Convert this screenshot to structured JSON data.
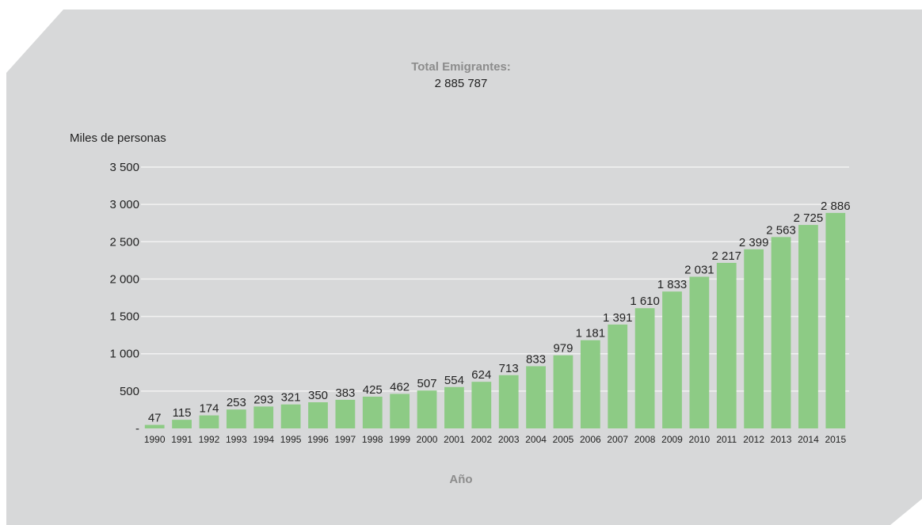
{
  "header": {
    "title": "Total Emigrantes:",
    "total": "2 885 787"
  },
  "colors": {
    "panel": "#d7d8d9",
    "bar": "#8dcb85",
    "grid": "#f2f2f2",
    "text": "#222222",
    "muted": "#8c8c8c"
  },
  "chart_data": {
    "type": "bar",
    "xlabel": "Año",
    "ylabel": "Miles de personas",
    "ylim": [
      0,
      3500
    ],
    "yticks": [
      0,
      500,
      1000,
      1500,
      2000,
      2500,
      3000,
      3500
    ],
    "ytick_labels": [
      "-",
      "500",
      "1 000",
      "1 500",
      "2 000",
      "2 500",
      "3 000",
      "3 500"
    ],
    "grid": true,
    "categories": [
      "1990",
      "1991",
      "1992",
      "1993",
      "1994",
      "1995",
      "1996",
      "1997",
      "1998",
      "1999",
      "2000",
      "2001",
      "2002",
      "2003",
      "2004",
      "2005",
      "2006",
      "2007",
      "2008",
      "2009",
      "2010",
      "2011",
      "2012",
      "2013",
      "2014",
      "2015"
    ],
    "values": [
      47,
      115,
      174,
      253,
      293,
      321,
      350,
      383,
      425,
      462,
      507,
      554,
      624,
      713,
      833,
      979,
      1181,
      1391,
      1610,
      1833,
      2031,
      2217,
      2399,
      2563,
      2725,
      2886
    ],
    "value_labels": [
      "47",
      "115",
      "174",
      "253",
      "293",
      "321",
      "350",
      "383",
      "425",
      "462",
      "507",
      "554",
      "624",
      "713",
      "833",
      "979",
      "1 181",
      "1 391",
      "1 610",
      "1 833",
      "2 031",
      "2 217",
      "2 399",
      "2 563",
      "2 725",
      "2 886"
    ]
  }
}
